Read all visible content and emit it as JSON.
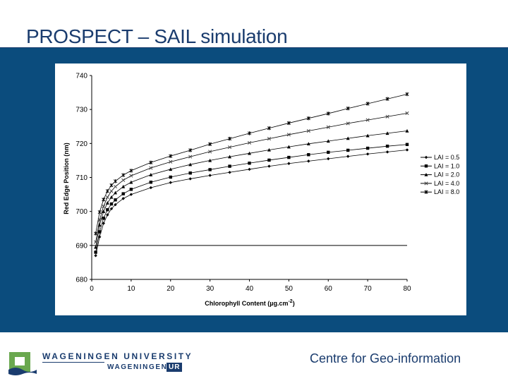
{
  "slide": {
    "title": "PROSPECT – SAIL simulation",
    "footer_text": "Centre for Geo-information",
    "logo": {
      "line1": "WAGENINGEN UNIVERSITY",
      "line2": "WAGENINGEN",
      "badge": "UR"
    }
  },
  "colors": {
    "panel": "#0b4c7d",
    "title": "#1a3c6e",
    "series": "#000000"
  },
  "chart_data": {
    "type": "line",
    "title": "",
    "xlabel": "Chlorophyll Content (µg.cm",
    "xlabel_sup": "-2",
    "xlabel_close": ")",
    "ylabel": "Red Edge Position (nm)",
    "xlim": [
      0,
      80
    ],
    "ylim": [
      680,
      740
    ],
    "x_ticks": [
      0,
      10,
      20,
      30,
      40,
      50,
      60,
      70,
      80
    ],
    "y_ticks": [
      680,
      690,
      700,
      710,
      720,
      730,
      740
    ],
    "reference_line_y": 690,
    "grid": false,
    "legend_position": "right",
    "x": [
      1,
      2,
      3,
      4,
      5,
      6,
      8,
      10,
      15,
      20,
      25,
      30,
      35,
      40,
      45,
      50,
      55,
      60,
      65,
      70,
      75,
      80
    ],
    "series": [
      {
        "name": "LAI = 0.5",
        "marker": "diamond",
        "values": [
          687.0,
          692.5,
          696.5,
          699.0,
          700.8,
          702.0,
          703.8,
          705.0,
          707.0,
          708.5,
          709.6,
          710.6,
          711.5,
          712.4,
          713.3,
          714.1,
          714.8,
          715.5,
          716.2,
          716.9,
          717.5,
          718.1
        ]
      },
      {
        "name": "LAI = 1.0",
        "marker": "square",
        "values": [
          688.0,
          694.0,
          698.0,
          700.5,
          702.2,
          703.4,
          705.2,
          706.5,
          708.6,
          710.1,
          711.3,
          712.3,
          713.3,
          714.2,
          715.1,
          715.9,
          716.7,
          717.4,
          718.0,
          718.6,
          719.2,
          719.7
        ]
      },
      {
        "name": "LAI = 2.0",
        "marker": "triangle",
        "values": [
          689.5,
          696.0,
          700.0,
          702.5,
          704.2,
          705.5,
          707.3,
          708.6,
          710.8,
          712.4,
          713.8,
          715.0,
          716.1,
          717.1,
          718.1,
          719.0,
          719.9,
          720.7,
          721.5,
          722.3,
          723.0,
          723.7
        ]
      },
      {
        "name": "LAI = 4.0",
        "marker": "cross",
        "values": [
          691.0,
          697.5,
          701.5,
          704.2,
          706.0,
          707.3,
          709.2,
          710.5,
          712.8,
          714.6,
          716.1,
          717.6,
          718.9,
          720.2,
          721.4,
          722.6,
          723.7,
          724.8,
          725.9,
          726.9,
          727.9,
          728.9
        ]
      },
      {
        "name": "LAI = 8.0",
        "marker": "star",
        "values": [
          693.5,
          699.8,
          703.5,
          706.0,
          707.7,
          708.9,
          710.7,
          712.0,
          714.4,
          716.3,
          718.0,
          719.8,
          721.4,
          723.0,
          724.5,
          726.0,
          727.4,
          728.8,
          730.3,
          731.7,
          733.1,
          734.5
        ]
      }
    ]
  }
}
